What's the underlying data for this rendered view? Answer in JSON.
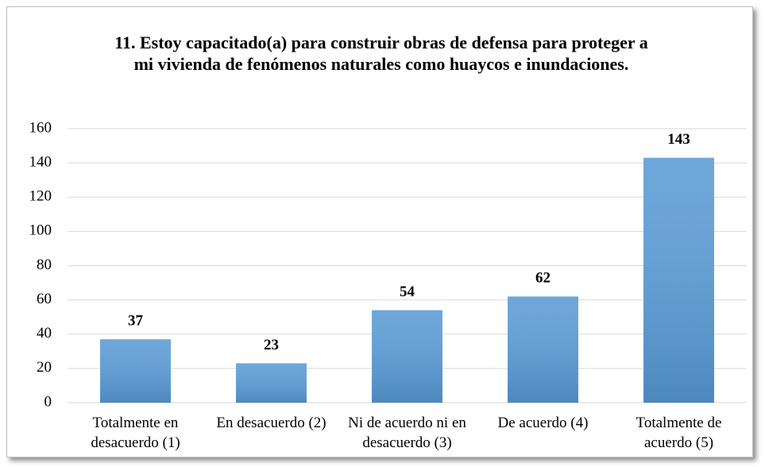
{
  "chart_data": {
    "type": "bar",
    "title": "11. Estoy capacitado(a) para construir obras de defensa para proteger a mi vivienda de fenómenos naturales como huaycos e inundaciones.",
    "categories": [
      "Totalmente en desacuerdo (1)",
      "En desacuerdo (2)",
      "Ni de acuerdo ni en desacuerdo (3)",
      "De acuerdo (4)",
      "Totalmente de acuerdo (5)"
    ],
    "values": [
      37,
      23,
      54,
      62,
      143
    ],
    "color": "#5b9bd5",
    "ylim": [
      0,
      160
    ],
    "yticks": [
      0,
      20,
      40,
      60,
      80,
      100,
      120,
      140,
      160
    ],
    "grid": true
  }
}
